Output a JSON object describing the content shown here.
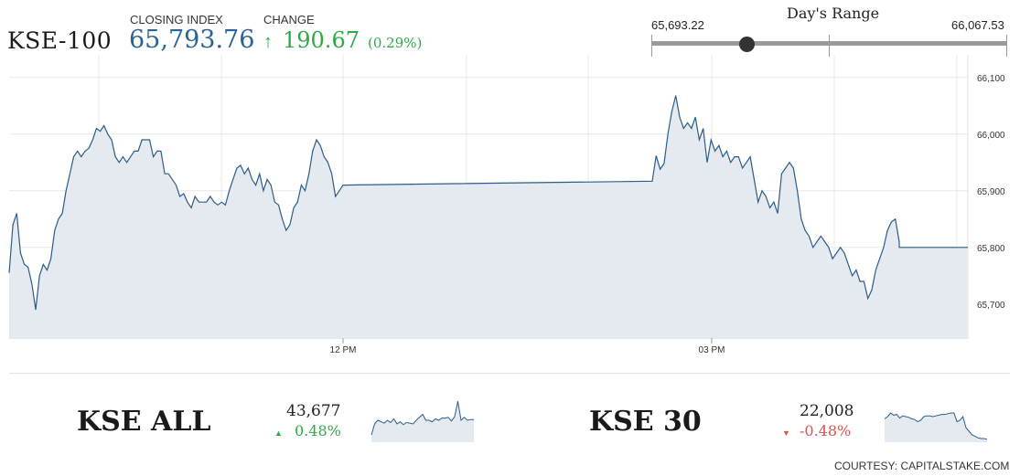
{
  "header": {
    "index_name": "KSE-100",
    "closing_label": "CLOSING INDEX",
    "closing_value": "65,793.76",
    "change_label": "CHANGE",
    "change_arrow": "↑",
    "change_value": "190.67",
    "change_pct": "(0.29%)"
  },
  "days_range": {
    "title": "Day's Range",
    "low": "65,693.22",
    "high": "66,067.53",
    "current": 65793.76,
    "low_num": 65693.22,
    "high_num": 66067.53
  },
  "colors": {
    "line": "#2b5c8a",
    "fill": "#e4eaf0",
    "up": "#2eaa44",
    "down": "#d9534f",
    "accent": "#2a6496"
  },
  "chart_data": {
    "type": "area",
    "title": "",
    "xlabel": "",
    "ylabel": "",
    "x_tick_labels": [
      "12 PM",
      "03 PM"
    ],
    "y_tick_labels": [
      "66,100",
      "66,000",
      "65,900",
      "65,800",
      "65,700"
    ],
    "ylim": [
      65640,
      66140
    ],
    "grid": true,
    "series": [
      {
        "values": [
          65755,
          65840,
          65860,
          65790,
          65770,
          65765,
          65735,
          65690,
          65750,
          65770,
          65760,
          65780,
          65830,
          65850,
          65860,
          65900,
          65930,
          65960,
          65970,
          65960,
          65970,
          65975,
          65990,
          66010,
          66005,
          66015,
          66000,
          65990,
          65960,
          65950,
          65960,
          65950,
          65960,
          65970,
          65970,
          65990,
          65990,
          65990,
          65960,
          65970,
          65970,
          65930,
          65930,
          65920,
          65910,
          65890,
          65895,
          65880,
          65870,
          65890,
          65880,
          65880,
          65880,
          65890,
          65880,
          65875,
          65880,
          65875,
          65900,
          65920,
          65940,
          65945,
          65930,
          65940,
          65920,
          65910,
          65930,
          65900,
          65920,
          65910,
          65880,
          65875,
          65850,
          65830,
          65840,
          65870,
          65880,
          65910,
          65900,
          65930,
          65970,
          65990,
          65980,
          65960,
          65950,
          65930,
          65890,
          65900,
          65910,
          65917,
          65962,
          65938,
          65948,
          66000,
          66040,
          66068,
          66030,
          66010,
          66020,
          66010,
          66030,
          65990,
          66010,
          65950,
          65990,
          65970,
          65980,
          65960,
          65970,
          65950,
          65960,
          65960,
          65940,
          65950,
          65960,
          65920,
          65880,
          65900,
          65890,
          65870,
          65880,
          65860,
          65930,
          65940,
          65950,
          65940,
          65900,
          65850,
          65830,
          65820,
          65800,
          65810,
          65820,
          65810,
          65800,
          65780,
          65790,
          65800,
          65790,
          65770,
          65750,
          65760,
          65740,
          65740,
          65710,
          65725,
          65760,
          65780,
          65800,
          65830,
          65845,
          65850,
          65810
        ]
      },
      {
        "values": [
          65800,
          65800,
          65800,
          65800,
          65800,
          65800
        ]
      }
    ]
  },
  "subindices": [
    {
      "name": "KSE ALL",
      "value": "43,677",
      "change": "0.48%",
      "direction": "up",
      "spark": [
        10,
        25,
        30,
        28,
        26,
        30,
        27,
        32,
        25,
        28,
        24,
        27,
        26,
        25,
        30,
        34,
        38,
        30,
        30,
        28,
        32,
        30,
        33,
        33,
        34,
        29,
        35,
        56,
        30,
        34,
        30,
        31,
        31
      ]
    },
    {
      "name": "KSE 30",
      "value": "22,008",
      "change": "-0.48%",
      "direction": "down",
      "spark": [
        32,
        35,
        40,
        37,
        38,
        33,
        36,
        35,
        34,
        32,
        31,
        28,
        30,
        35,
        36,
        36,
        35,
        36,
        37,
        38,
        38,
        39,
        40,
        40,
        28,
        30,
        35,
        20,
        15,
        10,
        8,
        6,
        5,
        5,
        4
      ]
    }
  ],
  "courtesy": "COURTESY: CAPITALSTAKE.COM"
}
